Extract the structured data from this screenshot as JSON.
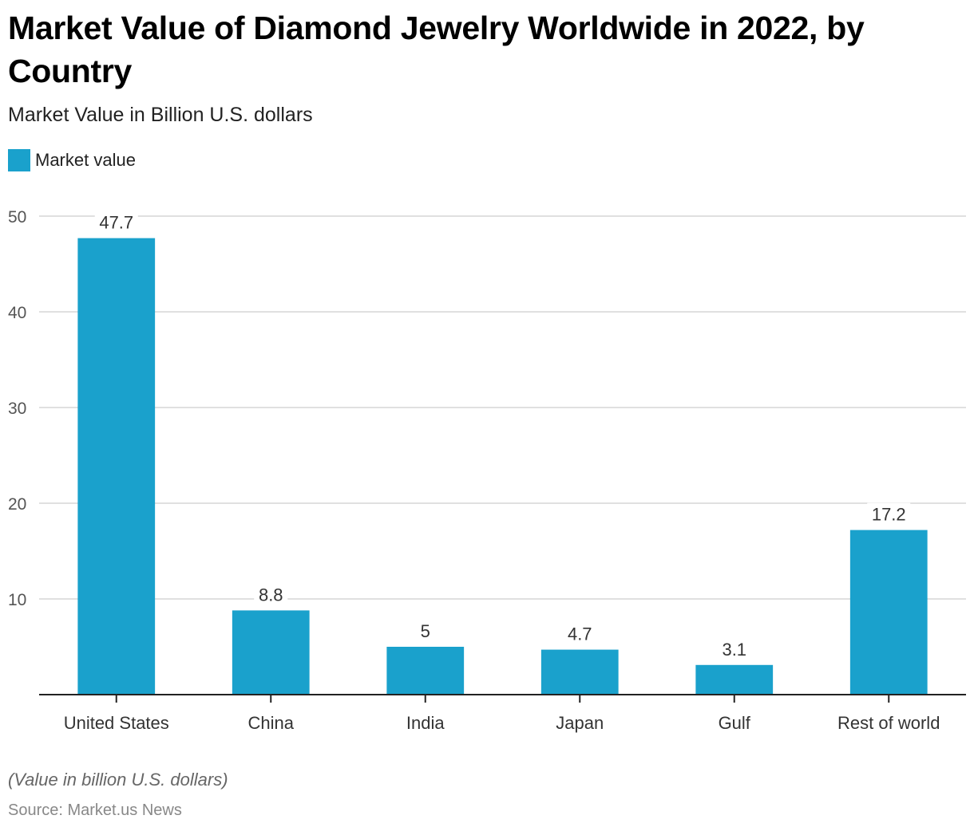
{
  "chart_data": {
    "type": "bar",
    "title": "Market Value of Diamond Jewelry Worldwide in 2022, by Country",
    "subtitle": "Market Value in Billion U.S. dollars",
    "categories": [
      "United States",
      "China",
      "India",
      "Japan",
      "Gulf",
      "Rest of world"
    ],
    "series": [
      {
        "name": "Market value",
        "values": [
          47.7,
          8.8,
          5,
          4.7,
          3.1,
          17.2
        ],
        "color": "#1aa1cc"
      }
    ],
    "data_labels": [
      "47.7",
      "8.8",
      "5",
      "4.7",
      "3.1",
      "17.2"
    ],
    "xlabel": "",
    "ylabel": "",
    "ylim": [
      0,
      50
    ],
    "yticks": [
      10,
      20,
      30,
      40,
      50
    ],
    "grid": true,
    "legend": "top-left"
  },
  "footer": {
    "note": "(Value in billion U.S. dollars)",
    "source": "Source: Market.us News"
  }
}
